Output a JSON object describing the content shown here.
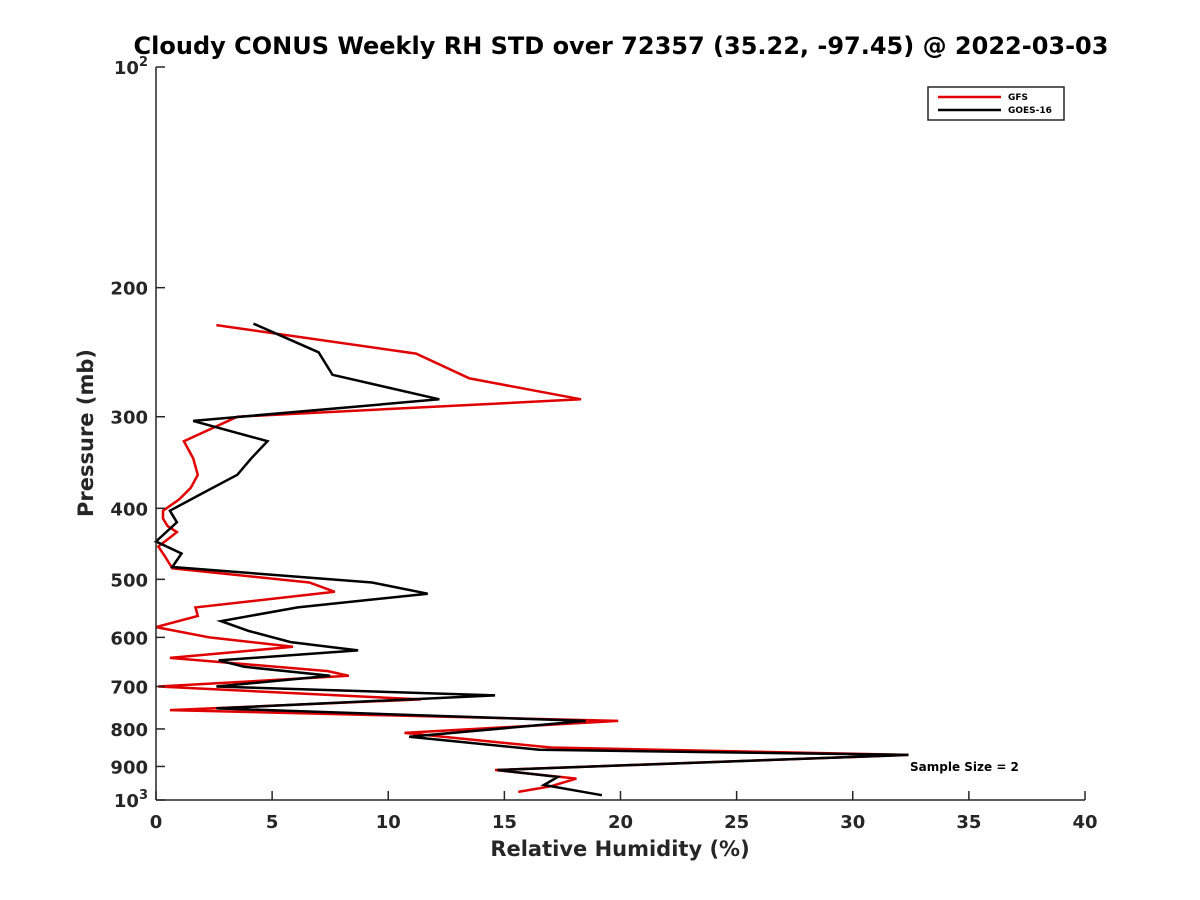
{
  "chart_data": {
    "type": "line",
    "title": "Cloudy CONUS Weekly RH STD over 72357 (35.22, -97.45) @ 2022-03-03",
    "xlabel": "Relative Humidity (%)",
    "ylabel": "Pressure (mb)",
    "xlim": [
      0,
      40
    ],
    "ylim": [
      100,
      1000
    ],
    "y_scale": "log",
    "y_reversed": true,
    "x_ticks": [
      0,
      5,
      10,
      15,
      20,
      25,
      30,
      35,
      40
    ],
    "x_tick_labels": [
      "0",
      "5",
      "10",
      "15",
      "20",
      "25",
      "30",
      "35",
      "40"
    ],
    "y_ticks": [
      100,
      200,
      300,
      400,
      500,
      600,
      700,
      800,
      900,
      1000
    ],
    "y_tick_labels": [
      {
        "base": "10",
        "exp": "2"
      },
      {
        "base": "200",
        "exp": ""
      },
      {
        "base": "300",
        "exp": ""
      },
      {
        "base": "400",
        "exp": ""
      },
      {
        "base": "500",
        "exp": ""
      },
      {
        "base": "600",
        "exp": ""
      },
      {
        "base": "700",
        "exp": ""
      },
      {
        "base": "800",
        "exp": ""
      },
      {
        "base": "900",
        "exp": ""
      },
      {
        "base": "10",
        "exp": "3"
      }
    ],
    "grid": false,
    "legend_position": "top-right",
    "series": [
      {
        "name": "GFS",
        "color": "#e00000",
        "points": [
          [
            2.6,
            225
          ],
          [
            11.2,
            246
          ],
          [
            13.5,
            266
          ],
          [
            18.3,
            284
          ],
          [
            3.5,
            300
          ],
          [
            1.2,
            324
          ],
          [
            1.6,
            342
          ],
          [
            1.8,
            360
          ],
          [
            1.5,
            375
          ],
          [
            1.0,
            389
          ],
          [
            0.3,
            403
          ],
          [
            0.3,
            413
          ],
          [
            0.5,
            423
          ],
          [
            0.9,
            431
          ],
          [
            0.5,
            441
          ],
          [
            0.1,
            451
          ],
          [
            0.4,
            466
          ],
          [
            0.7,
            483
          ],
          [
            6.6,
            505
          ],
          [
            7.7,
            520
          ],
          [
            1.7,
            546
          ],
          [
            1.8,
            561
          ],
          [
            0.0,
            581
          ],
          [
            2.3,
            600
          ],
          [
            5.9,
            618
          ],
          [
            0.6,
            640
          ],
          [
            7.4,
            667
          ],
          [
            8.3,
            677
          ],
          [
            0.1,
            700
          ],
          [
            11.4,
            729
          ],
          [
            0.6,
            754
          ],
          [
            19.9,
            780
          ],
          [
            10.7,
            810
          ],
          [
            17.0,
            848
          ],
          [
            32.4,
            868
          ],
          [
            14.6,
            910
          ],
          [
            18.1,
            935
          ],
          [
            17.0,
            958
          ],
          [
            15.6,
            975
          ]
        ]
      },
      {
        "name": "GOES-16",
        "color": "#000000",
        "points": [
          [
            4.2,
            224
          ],
          [
            7.0,
            245
          ],
          [
            7.6,
            263
          ],
          [
            12.2,
            284
          ],
          [
            1.6,
            304
          ],
          [
            4.8,
            324
          ],
          [
            4.1,
            342
          ],
          [
            3.5,
            360
          ],
          [
            2.1,
            380
          ],
          [
            0.6,
            403
          ],
          [
            0.9,
            418
          ],
          [
            0.0,
            444
          ],
          [
            1.1,
            461
          ],
          [
            0.7,
            481
          ],
          [
            9.3,
            505
          ],
          [
            11.7,
            523
          ],
          [
            6.1,
            546
          ],
          [
            2.8,
            570
          ],
          [
            4.0,
            588
          ],
          [
            5.8,
            609
          ],
          [
            8.7,
            625
          ],
          [
            2.7,
            645
          ],
          [
            3.8,
            658
          ],
          [
            7.5,
            677
          ],
          [
            2.6,
            700
          ],
          [
            14.6,
            720
          ],
          [
            2.6,
            750
          ],
          [
            18.5,
            780
          ],
          [
            10.9,
            820
          ],
          [
            16.5,
            854
          ],
          [
            32.4,
            868
          ],
          [
            14.7,
            910
          ],
          [
            17.3,
            930
          ],
          [
            16.7,
            954
          ],
          [
            19.2,
            985
          ]
        ]
      }
    ],
    "annotation": "Sample Size = 2"
  }
}
